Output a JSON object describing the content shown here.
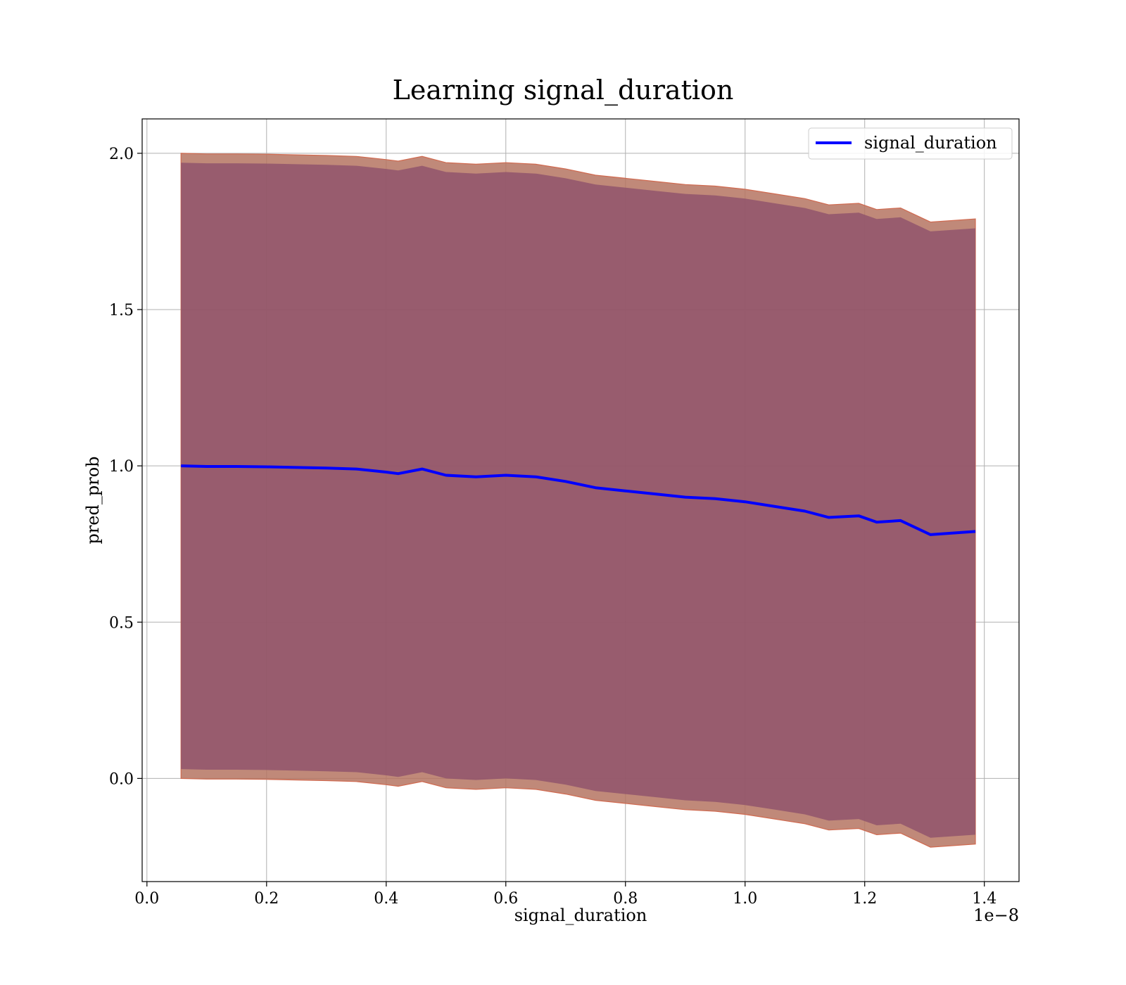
{
  "chart_data": {
    "type": "line",
    "title": "Learning signal_duration",
    "xlabel": "signal_duration",
    "ylabel": "pred_prob",
    "x_offset_label": "1e−8",
    "xlim": [
      -0.008,
      1.458
    ],
    "ylim": [
      -0.33,
      2.11
    ],
    "xticks": [
      0.0,
      0.2,
      0.4,
      0.6,
      0.8,
      1.0,
      1.2,
      1.4
    ],
    "xtick_labels": [
      "0.0",
      "0.2",
      "0.4",
      "0.6",
      "0.8",
      "1.0",
      "1.2",
      "1.4"
    ],
    "yticks": [
      0.0,
      0.5,
      1.0,
      1.5,
      2.0
    ],
    "ytick_labels": [
      "0.0",
      "0.5",
      "1.0",
      "1.5",
      "2.0"
    ],
    "grid": true,
    "legend_position": "top-right",
    "series": [
      {
        "name": "signal_duration",
        "color": "#0000ff",
        "x": [
          0.057,
          0.1,
          0.15,
          0.2,
          0.25,
          0.3,
          0.35,
          0.4,
          0.42,
          0.46,
          0.5,
          0.55,
          0.6,
          0.65,
          0.7,
          0.75,
          0.8,
          0.85,
          0.9,
          0.95,
          1.0,
          1.05,
          1.1,
          1.14,
          1.19,
          1.22,
          1.26,
          1.31,
          1.385
        ],
        "y": [
          1.0,
          0.998,
          0.998,
          0.997,
          0.995,
          0.993,
          0.99,
          0.98,
          0.975,
          0.99,
          0.97,
          0.965,
          0.97,
          0.965,
          0.95,
          0.93,
          0.92,
          0.91,
          0.9,
          0.895,
          0.885,
          0.87,
          0.855,
          0.835,
          0.84,
          0.82,
          0.825,
          0.78,
          0.79
        ]
      }
    ],
    "bands": [
      {
        "color": "#b57462",
        "x": [
          0.057,
          0.1,
          0.15,
          0.2,
          0.25,
          0.3,
          0.35,
          0.4,
          0.42,
          0.46,
          0.5,
          0.55,
          0.6,
          0.65,
          0.7,
          0.75,
          0.8,
          0.85,
          0.9,
          0.95,
          1.0,
          1.05,
          1.1,
          1.14,
          1.19,
          1.22,
          1.26,
          1.31,
          1.385
        ],
        "upper": [
          2.0,
          1.998,
          1.998,
          1.997,
          1.995,
          1.993,
          1.99,
          1.98,
          1.975,
          1.99,
          1.97,
          1.965,
          1.97,
          1.965,
          1.95,
          1.93,
          1.92,
          1.91,
          1.9,
          1.895,
          1.885,
          1.87,
          1.855,
          1.835,
          1.84,
          1.82,
          1.825,
          1.78,
          1.79
        ],
        "lower": [
          0.0,
          -0.002,
          -0.002,
          -0.003,
          -0.005,
          -0.007,
          -0.01,
          -0.02,
          -0.025,
          -0.01,
          -0.03,
          -0.035,
          -0.03,
          -0.035,
          -0.05,
          -0.07,
          -0.08,
          -0.09,
          -0.1,
          -0.105,
          -0.115,
          -0.13,
          -0.145,
          -0.165,
          -0.16,
          -0.18,
          -0.175,
          -0.22,
          -0.21
        ]
      },
      {
        "color": "#8b4d6b",
        "x": [
          0.057,
          0.1,
          0.15,
          0.2,
          0.25,
          0.3,
          0.35,
          0.4,
          0.42,
          0.46,
          0.5,
          0.55,
          0.6,
          0.65,
          0.7,
          0.75,
          0.8,
          0.85,
          0.9,
          0.95,
          1.0,
          1.05,
          1.1,
          1.14,
          1.19,
          1.22,
          1.26,
          1.31,
          1.385
        ],
        "upper": [
          1.97,
          1.968,
          1.968,
          1.967,
          1.965,
          1.963,
          1.96,
          1.95,
          1.945,
          1.96,
          1.94,
          1.935,
          1.94,
          1.935,
          1.92,
          1.9,
          1.89,
          1.88,
          1.87,
          1.865,
          1.855,
          1.84,
          1.825,
          1.805,
          1.81,
          1.79,
          1.795,
          1.75,
          1.76
        ],
        "lower": [
          0.03,
          0.028,
          0.028,
          0.027,
          0.025,
          0.023,
          0.02,
          0.01,
          0.005,
          0.02,
          0.0,
          -0.005,
          0.0,
          -0.005,
          -0.02,
          -0.04,
          -0.05,
          -0.06,
          -0.07,
          -0.075,
          -0.085,
          -0.1,
          -0.115,
          -0.135,
          -0.13,
          -0.15,
          -0.145,
          -0.19,
          -0.18
        ]
      }
    ]
  }
}
